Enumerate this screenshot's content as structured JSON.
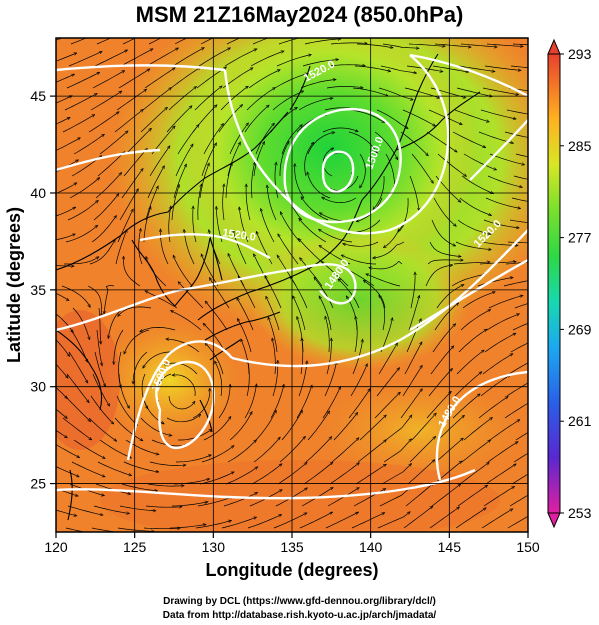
{
  "title": "MSM 21Z16May2024 (850.0hPa)",
  "x_axis": {
    "label": "Longitude (degrees)",
    "ticks": [
      120,
      125,
      130,
      135,
      140,
      145,
      150
    ],
    "range": [
      120,
      150
    ]
  },
  "y_axis": {
    "label": "Latitude  (degrees)",
    "ticks": [
      25,
      30,
      35,
      40,
      45
    ],
    "range": [
      22.5,
      48
    ]
  },
  "colorbar": {
    "labels": [
      293,
      285,
      277,
      269,
      261,
      253
    ],
    "range": [
      253,
      293
    ],
    "colors": [
      "#e0209f",
      "#3b2fd0",
      "#1f8fff",
      "#19d0c8",
      "#2ed84a",
      "#9ee82a",
      "#f0e020",
      "#ff9a20",
      "#f06a30",
      "#e03a30"
    ]
  },
  "contours": {
    "labels": [
      "1520.0",
      "1500.0",
      "1520.0",
      "1480.0",
      "1500.0",
      "1520.0",
      "1480.0"
    ]
  },
  "credits": {
    "line1": "Drawing by DCL (https://www.gfd-dennou.org/library/dcl/)",
    "line2": "Data from http://database.rish.kyoto-u.ac.jp/arch/jmadata/"
  }
}
